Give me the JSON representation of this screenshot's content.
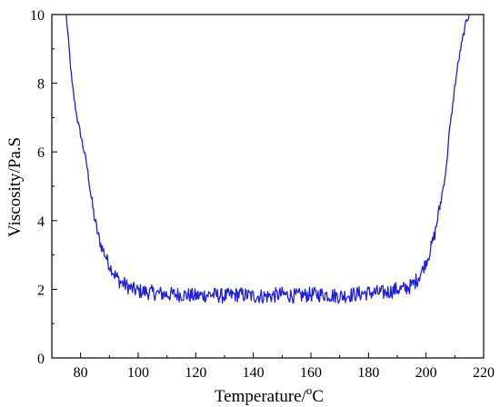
{
  "chart_data": {
    "type": "line",
    "xlabel": "Temperature/",
    "xlabel_unit": "oC",
    "ylabel": "Viscosity/Pa.S",
    "xlim": [
      70,
      220
    ],
    "ylim": [
      0,
      10
    ],
    "xticks": [
      "80",
      "100",
      "120",
      "140",
      "160",
      "180",
      "200",
      "220"
    ],
    "yticks": [
      "0",
      "2",
      "4",
      "6",
      "8",
      "10"
    ],
    "grid": false,
    "legend": "none",
    "series": [
      {
        "color": "#1f1fe0",
        "x": [
          75,
          76,
          77,
          78,
          79,
          80,
          81,
          82,
          83,
          84,
          85,
          86,
          87,
          88,
          89,
          90,
          92,
          94,
          96,
          98,
          100,
          105,
          110,
          115,
          120,
          125,
          130,
          135,
          140,
          145,
          150,
          155,
          160,
          165,
          170,
          175,
          180,
          185,
          188,
          190,
          192,
          195,
          197,
          199,
          201,
          203,
          205,
          207,
          208,
          209,
          210,
          211,
          212,
          213,
          214,
          215
        ],
        "y": [
          10.0,
          9.0,
          8.0,
          7.4,
          6.9,
          6.5,
          6.1,
          5.7,
          5.1,
          4.5,
          4.0,
          3.6,
          3.3,
          3.1,
          2.9,
          2.7,
          2.4,
          2.2,
          2.1,
          2.0,
          1.95,
          1.9,
          1.85,
          1.85,
          1.8,
          1.85,
          1.8,
          1.85,
          1.8,
          1.8,
          1.85,
          1.8,
          1.85,
          1.85,
          1.8,
          1.85,
          1.9,
          1.9,
          1.95,
          2.0,
          2.0,
          2.1,
          2.3,
          2.6,
          3.0,
          3.6,
          4.5,
          5.5,
          6.5,
          7.2,
          7.9,
          8.5,
          9.0,
          9.4,
          9.8,
          10.0
        ]
      }
    ]
  }
}
